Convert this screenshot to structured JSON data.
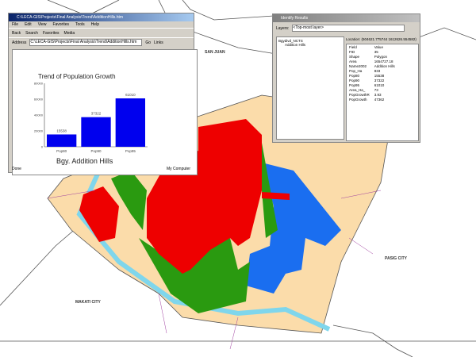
{
  "map": {
    "labels": {
      "san_juan": "SAN JUAN",
      "pasig": "PASIG CITY",
      "makati": "MAKATI CITY"
    },
    "colors": {
      "high": "#ee0000",
      "mid": "#2a9a10",
      "low": "#1a6ef0",
      "land": "#fbdcaa",
      "river": "#7fd6ec"
    }
  },
  "browser": {
    "title": "C:\\LECA-GIS\\Projects\\Final Analysis\\Trend\\AdditionHills.htm",
    "menu": [
      "File",
      "Edit",
      "View",
      "Favorites",
      "Tools",
      "Help"
    ],
    "toolbar": [
      "Back",
      "Search",
      "Favorites",
      "Media"
    ],
    "address_label": "Address",
    "address": "C:\\LECA-GIS\\Projects\\Final Analysis\\Trend\\AdditionHills.htm",
    "go": "Go",
    "links": "Links",
    "status_left": "Done",
    "status_right": "My Computer"
  },
  "chart_data": {
    "type": "bar",
    "title": "Trend of Population Growth",
    "xlabel": "Bgy. Addition Hills",
    "categories": [
      "Pop80",
      "Pop90",
      "Pop95"
    ],
    "values": [
      15538,
      37322,
      61010
    ],
    "ylim": [
      0,
      80000
    ],
    "yticks": [
      0,
      20000,
      40000,
      60000,
      80000
    ],
    "color": "#0000ee"
  },
  "identify": {
    "title": "Identify Results",
    "layers_label": "Layers:",
    "layers_value": "<Top-most layer>",
    "tree_root": "Bgydivd_NCTS",
    "tree_child": "Addition Hills",
    "location": "Location: (504621.775744 1612626.554582)",
    "headers": [
      "Field",
      "Value"
    ],
    "rows": [
      [
        "FID",
        "35"
      ],
      [
        "Shape",
        "Polygon"
      ],
      [
        "Area",
        "1654727.18"
      ],
      [
        "Name2002",
        "Addition Hills"
      ],
      [
        "Pop_Ha",
        "833"
      ],
      [
        "Pop80",
        "15538"
      ],
      [
        "Pop90",
        "37322"
      ],
      [
        "Pop95",
        "61010"
      ],
      [
        "Area_Ha_",
        "73"
      ],
      [
        "PopGrowthR",
        "3.93"
      ],
      [
        "PopGrowth",
        "47362"
      ]
    ]
  }
}
